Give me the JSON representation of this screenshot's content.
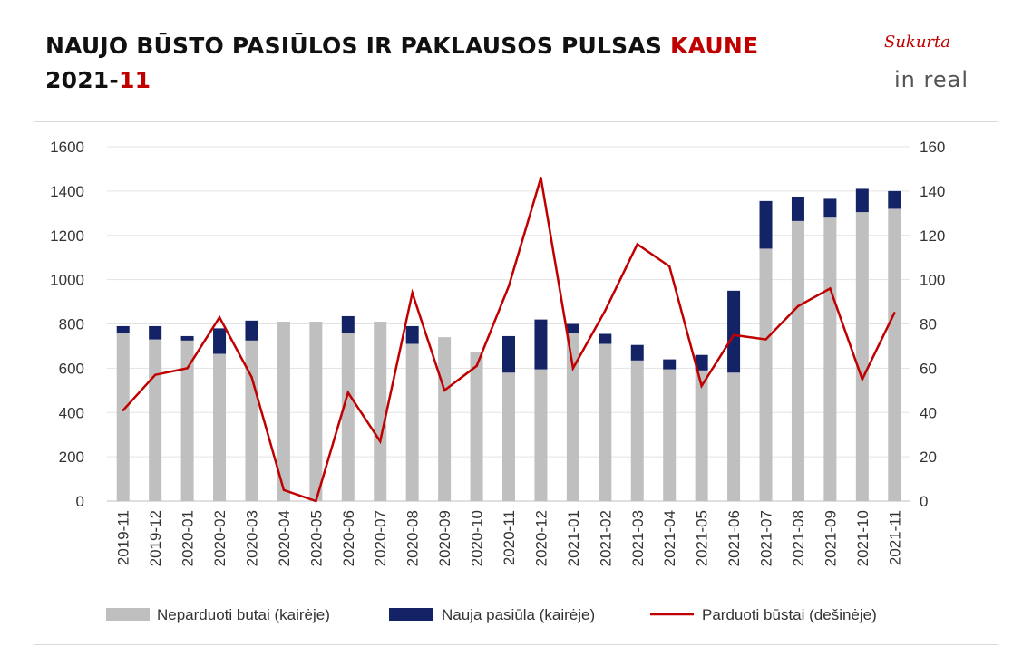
{
  "header": {
    "title_main": "NAUJO BŪSTO PASIŪLOS IR PAKLAUSOS PULSAS ",
    "title_city": "KAUNE",
    "period_year": "2021-",
    "period_month": "11"
  },
  "logo": {
    "script_text": "Sukurta",
    "brand_text": "in real"
  },
  "colors": {
    "unsold": "#bfbfbf",
    "new_supply": "#142366",
    "sold": "#c00000",
    "accent": "#c00000"
  },
  "chart_data": {
    "type": "bar",
    "stacked": true,
    "categories": [
      "2019-11",
      "2019-12",
      "2020-01",
      "2020-02",
      "2020-03",
      "2020-04",
      "2020-05",
      "2020-06",
      "2020-07",
      "2020-08",
      "2020-09",
      "2020-10",
      "2020-11",
      "2020-12",
      "2021-01",
      "2021-02",
      "2021-03",
      "2021-04",
      "2021-05",
      "2021-06",
      "2021-07",
      "2021-08",
      "2021-09",
      "2021-10",
      "2021-11"
    ],
    "y_left_ticks": [
      "0",
      "200",
      "400",
      "600",
      "800",
      "1000",
      "1200",
      "1400",
      "1600"
    ],
    "y_right_ticks": [
      "0",
      "20",
      "40",
      "60",
      "80",
      "100",
      "120",
      "140",
      "160"
    ],
    "ylim_left": [
      0,
      1600
    ],
    "ylim_right": [
      0,
      160
    ],
    "grid": true,
    "legend_position": "bottom",
    "series": [
      {
        "name": "Neparduoti butai (kairėje)",
        "type": "bar",
        "axis": "left",
        "values": [
          760,
          730,
          725,
          665,
          725,
          810,
          810,
          760,
          810,
          710,
          740,
          675,
          580,
          595,
          760,
          710,
          635,
          595,
          590,
          580,
          1140,
          1265,
          1280,
          1305,
          1320
        ]
      },
      {
        "name": "Nauja pasiūla (kairėje)",
        "type": "bar",
        "axis": "left",
        "values": [
          30,
          60,
          20,
          115,
          90,
          0,
          0,
          75,
          0,
          80,
          0,
          0,
          165,
          225,
          40,
          45,
          70,
          45,
          70,
          370,
          215,
          110,
          85,
          105,
          80
        ]
      },
      {
        "name": "Parduoti būstai (dešinėje)",
        "type": "line",
        "axis": "right",
        "values": [
          41,
          57,
          60,
          83,
          56,
          5,
          0,
          49,
          27,
          94,
          50,
          61,
          97,
          146,
          60,
          86,
          116,
          106,
          52,
          75,
          73,
          88,
          96,
          55,
          85
        ]
      }
    ]
  }
}
